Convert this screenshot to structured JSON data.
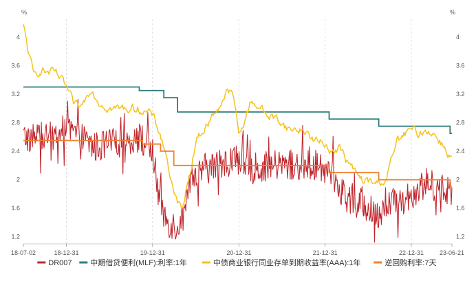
{
  "chart_data": {
    "type": "line",
    "unit_left": "%",
    "unit_right": "%",
    "x_tick_labels": [
      "18-07-02",
      "18-12-31",
      "19-12-31",
      "20-12-31",
      "21-12-31",
      "22-12-31",
      "23-06-21"
    ],
    "y_ticks": [
      1.2,
      1.6,
      2,
      2.4,
      2.8,
      3.2,
      3.6,
      4
    ],
    "ylim": [
      1.1,
      4.25
    ],
    "x_range": [
      "2018-07-02",
      "2023-06-21"
    ],
    "grid": true,
    "legend_position": "bottom",
    "series": [
      {
        "name": "DR007",
        "color": "#c0262d",
        "kind": "noisy",
        "points": [
          [
            "2018-07-02",
            2.6
          ],
          [
            "2018-09-01",
            2.6
          ],
          [
            "2018-11-01",
            2.6
          ],
          [
            "2018-12-31",
            2.7
          ],
          [
            "2019-03-01",
            2.6
          ],
          [
            "2019-05-01",
            2.45
          ],
          [
            "2019-07-01",
            2.5
          ],
          [
            "2019-09-01",
            2.55
          ],
          [
            "2019-11-01",
            2.6
          ],
          [
            "2019-12-31",
            2.4
          ],
          [
            "2020-01-20",
            1.9
          ],
          [
            "2020-02-10",
            1.55
          ],
          [
            "2020-03-10",
            1.4
          ],
          [
            "2020-04-10",
            1.35
          ],
          [
            "2020-05-10",
            1.45
          ],
          [
            "2020-06-10",
            1.95
          ],
          [
            "2020-08-01",
            2.15
          ],
          [
            "2020-10-01",
            2.2
          ],
          [
            "2020-12-31",
            2.3
          ],
          [
            "2021-03-01",
            2.15
          ],
          [
            "2021-06-01",
            2.2
          ],
          [
            "2021-09-01",
            2.2
          ],
          [
            "2021-12-31",
            2.2
          ],
          [
            "2022-02-01",
            2.05
          ],
          [
            "2022-04-01",
            1.75
          ],
          [
            "2022-06-01",
            1.7
          ],
          [
            "2022-08-01",
            1.5
          ],
          [
            "2022-10-01",
            1.65
          ],
          [
            "2022-12-31",
            1.8
          ],
          [
            "2023-03-01",
            1.95
          ],
          [
            "2023-06-21",
            1.85
          ]
        ]
      },
      {
        "name": "中期借贷便利(MLF):利率:1年",
        "color": "#2e7d7e",
        "kind": "step",
        "points": [
          [
            "2018-07-02",
            3.3
          ],
          [
            "2019-11-05",
            3.25
          ],
          [
            "2020-02-17",
            3.15
          ],
          [
            "2020-04-15",
            2.95
          ],
          [
            "2022-01-17",
            2.85
          ],
          [
            "2022-08-15",
            2.75
          ],
          [
            "2023-06-13",
            2.65
          ],
          [
            "2023-06-21",
            2.65
          ]
        ]
      },
      {
        "name": "中债商业银行同业存单到期收益率(AAA):1年",
        "color": "#f4c31c",
        "kind": "smoothnoisy",
        "points": [
          [
            "2018-07-02",
            4.15
          ],
          [
            "2018-07-20",
            3.85
          ],
          [
            "2018-08-15",
            3.45
          ],
          [
            "2018-09-15",
            3.55
          ],
          [
            "2018-10-15",
            3.5
          ],
          [
            "2018-11-15",
            3.5
          ],
          [
            "2018-12-31",
            3.3
          ],
          [
            "2019-01-31",
            3.05
          ],
          [
            "2019-03-01",
            3.0
          ],
          [
            "2019-04-15",
            3.3
          ],
          [
            "2019-05-15",
            3.1
          ],
          [
            "2019-07-01",
            3.0
          ],
          [
            "2019-09-01",
            3.0
          ],
          [
            "2019-11-01",
            3.0
          ],
          [
            "2019-12-31",
            2.9
          ],
          [
            "2020-02-01",
            2.65
          ],
          [
            "2020-03-01",
            2.3
          ],
          [
            "2020-04-01",
            1.75
          ],
          [
            "2020-05-01",
            1.6
          ],
          [
            "2020-06-01",
            2.0
          ],
          [
            "2020-07-01",
            2.55
          ],
          [
            "2020-08-15",
            2.75
          ],
          [
            "2020-10-01",
            3.0
          ],
          [
            "2020-11-15",
            3.25
          ],
          [
            "2020-12-10",
            3.15
          ],
          [
            "2020-12-31",
            2.6
          ],
          [
            "2021-01-20",
            2.8
          ],
          [
            "2021-02-20",
            3.1
          ],
          [
            "2021-03-20",
            3.05
          ],
          [
            "2021-05-01",
            2.9
          ],
          [
            "2021-06-15",
            2.85
          ],
          [
            "2021-08-01",
            2.7
          ],
          [
            "2021-10-01",
            2.7
          ],
          [
            "2021-11-15",
            2.55
          ],
          [
            "2021-12-31",
            2.5
          ],
          [
            "2022-02-01",
            2.4
          ],
          [
            "2022-03-01",
            2.45
          ],
          [
            "2022-04-15",
            2.2
          ],
          [
            "2022-06-01",
            2.0
          ],
          [
            "2022-08-01",
            1.95
          ],
          [
            "2022-09-15",
            2.0
          ],
          [
            "2022-11-01",
            2.55
          ],
          [
            "2022-12-31",
            2.7
          ],
          [
            "2023-02-01",
            2.65
          ],
          [
            "2023-03-15",
            2.7
          ],
          [
            "2023-05-01",
            2.55
          ],
          [
            "2023-06-21",
            2.3
          ]
        ]
      },
      {
        "name": "逆回购利率:7天",
        "color": "#f08030",
        "kind": "step",
        "points": [
          [
            "2018-07-02",
            2.55
          ],
          [
            "2019-11-18",
            2.5
          ],
          [
            "2020-02-03",
            2.4
          ],
          [
            "2020-03-30",
            2.2
          ],
          [
            "2022-01-17",
            2.1
          ],
          [
            "2022-08-15",
            2.0
          ],
          [
            "2023-06-13",
            1.9
          ],
          [
            "2023-06-21",
            1.9
          ]
        ]
      }
    ]
  }
}
